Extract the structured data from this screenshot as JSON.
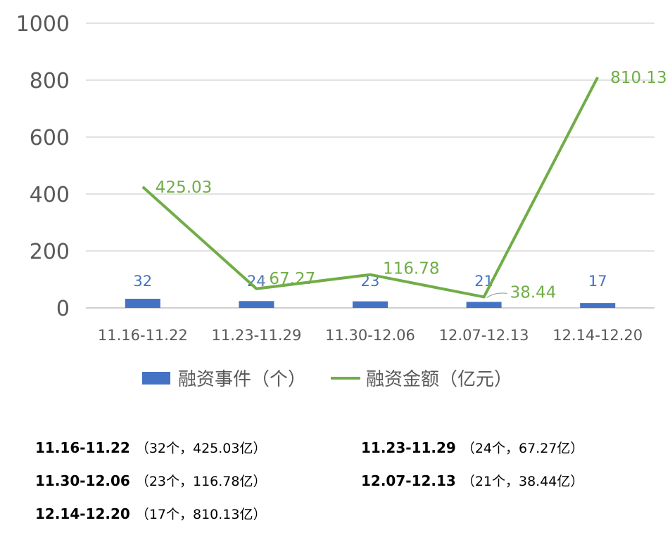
{
  "chart_data": {
    "type": "bar+line",
    "categories": [
      "11.16-11.22",
      "11.23-11.29",
      "11.30-12.06",
      "12.07-12.13",
      "12.14-12.20"
    ],
    "series": [
      {
        "name": "融资事件（个）",
        "type": "bar",
        "values": [
          32,
          24,
          23,
          21,
          17
        ],
        "color": "#4472C4"
      },
      {
        "name": "融资金额（亿元）",
        "type": "line",
        "values": [
          425.03,
          67.27,
          116.78,
          38.44,
          810.13
        ],
        "color": "#70AD47"
      }
    ],
    "y_ticks": [
      "0",
      "200",
      "400",
      "600",
      "800",
      "1000"
    ],
    "ylim": [
      0,
      1000
    ],
    "grid": true,
    "legend": "bottom",
    "bar_labels": [
      "32",
      "24",
      "23",
      "21",
      "17"
    ],
    "line_labels": [
      "425.03",
      "67.27",
      "116.78",
      "38.44",
      "810.13"
    ]
  },
  "summary": [
    {
      "period": "11.16-11.22",
      "detail": "（32个，425.03亿）"
    },
    {
      "period": "11.23-11.29",
      "detail": "（24个，67.27亿）"
    },
    {
      "period": "11.30-12.06",
      "detail": "（23个，116.78亿）"
    },
    {
      "period": "12.07-12.13",
      "detail": "（21个，38.44亿）"
    },
    {
      "period": "12.14-12.20",
      "detail": "（17个，810.13亿）"
    }
  ]
}
